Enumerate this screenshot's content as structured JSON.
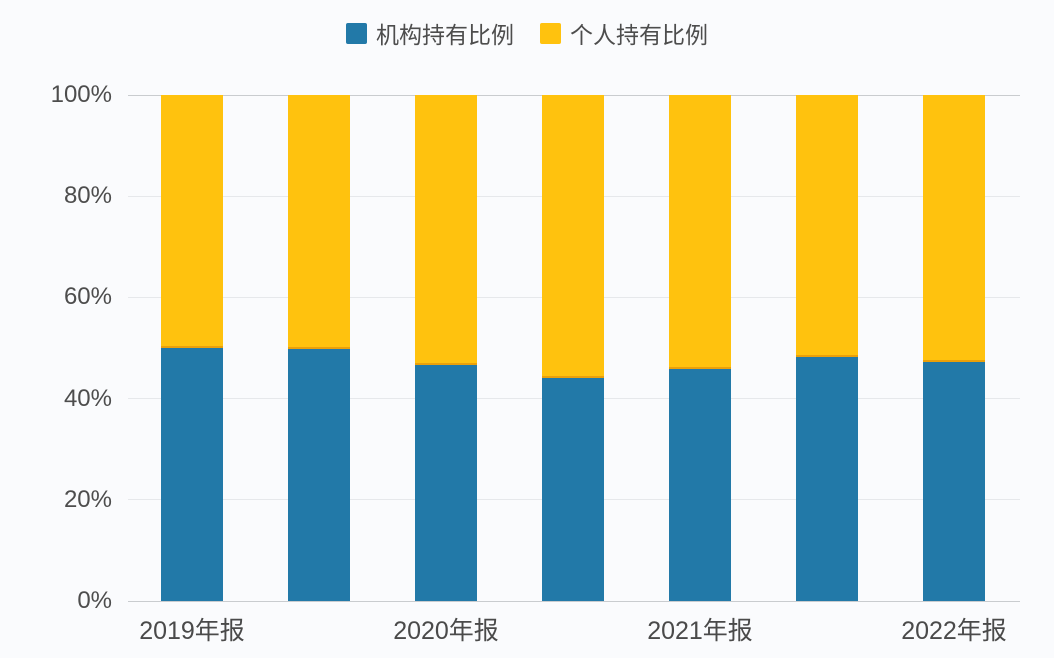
{
  "legend": {
    "items": [
      {
        "label": "机构持有比例",
        "color": "#2279A8"
      },
      {
        "label": "个人持有比例",
        "color": "#FFC20E"
      }
    ]
  },
  "chart_data": {
    "type": "bar",
    "stacked": true,
    "percent_stacked": true,
    "title": "",
    "categories": [
      "2019年报",
      "",
      "2020年报",
      "",
      "2021年报",
      "",
      "2022年报"
    ],
    "series": [
      {
        "name": "机构持有比例",
        "color": "#2279A8",
        "values": [
          50.0,
          49.8,
          46.7,
          44.0,
          45.8,
          48.2,
          47.2
        ]
      },
      {
        "name": "个人持有比例",
        "color": "#FFC20E",
        "values": [
          50.0,
          50.2,
          53.3,
          56.0,
          54.2,
          51.8,
          52.8
        ]
      }
    ],
    "xlabel": "",
    "ylabel": "",
    "ylim": [
      0,
      100
    ],
    "y_ticks": [
      "0%",
      "20%",
      "40%",
      "60%",
      "80%",
      "100%"
    ],
    "grid": true,
    "legend_position": "top-center"
  },
  "colors": {
    "background": "#FAFBFD",
    "gridline": "#E6E8EB",
    "axis_line": "#C9CCCF",
    "text": "#4D4D4D"
  }
}
